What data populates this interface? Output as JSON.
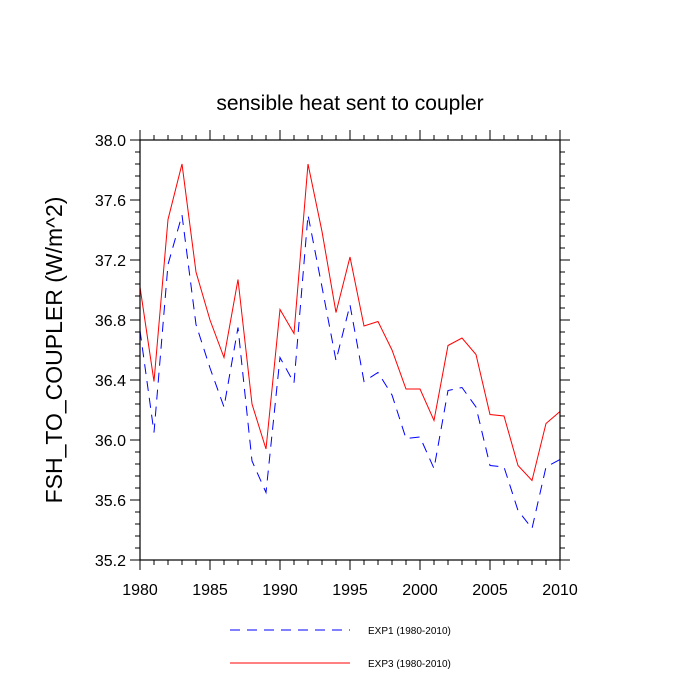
{
  "chart_data": {
    "type": "line",
    "title": "sensible heat sent to coupler",
    "xlabel": "",
    "ylabel": "FSH_TO_COUPLER  (W/m^2)",
    "xlim": [
      1980,
      2010
    ],
    "ylim": [
      35.2,
      38.0
    ],
    "x_ticks": [
      1980,
      1985,
      1990,
      1995,
      2000,
      2005,
      2010
    ],
    "x_tick_labels": [
      "1980",
      "1985",
      "1990",
      "1995",
      "2000",
      "2005",
      "2010"
    ],
    "y_ticks": [
      35.2,
      35.6,
      36.0,
      36.4,
      36.8,
      37.2,
      37.6,
      38.0
    ],
    "y_tick_labels": [
      "35.2",
      "35.6",
      "36.0",
      "36.4",
      "36.8",
      "37.2",
      "37.6",
      "38.0"
    ],
    "grid": false,
    "legend_position": "bottom",
    "x": [
      1980,
      1981,
      1982,
      1983,
      1984,
      1985,
      1986,
      1987,
      1988,
      1989,
      1990,
      1991,
      1992,
      1993,
      1994,
      1995,
      1996,
      1997,
      1998,
      1999,
      2000,
      2001,
      2002,
      2003,
      2004,
      2005,
      2006,
      2007,
      2008,
      2009,
      2010
    ],
    "series": [
      {
        "name": "EXP1 (1980-2010)",
        "color": "#0000ff",
        "style": "dashed",
        "values": [
          36.73,
          36.05,
          37.17,
          37.5,
          36.77,
          36.48,
          36.22,
          36.75,
          35.86,
          35.65,
          36.55,
          36.38,
          37.5,
          37.02,
          36.53,
          36.9,
          36.39,
          36.45,
          36.3,
          36.01,
          36.02,
          35.81,
          36.33,
          36.35,
          36.22,
          35.83,
          35.82,
          35.53,
          35.41,
          35.82,
          35.87
        ]
      },
      {
        "name": "EXP3 (1980-2010)",
        "color": "#ff0000",
        "style": "solid",
        "values": [
          37.02,
          36.39,
          37.47,
          37.84,
          37.12,
          36.8,
          36.55,
          37.07,
          36.24,
          35.94,
          36.87,
          36.71,
          37.84,
          37.39,
          36.85,
          37.22,
          36.76,
          36.79,
          36.6,
          36.34,
          36.34,
          36.13,
          36.63,
          36.68,
          36.57,
          36.17,
          36.16,
          35.83,
          35.73,
          36.11,
          36.19
        ]
      }
    ]
  }
}
